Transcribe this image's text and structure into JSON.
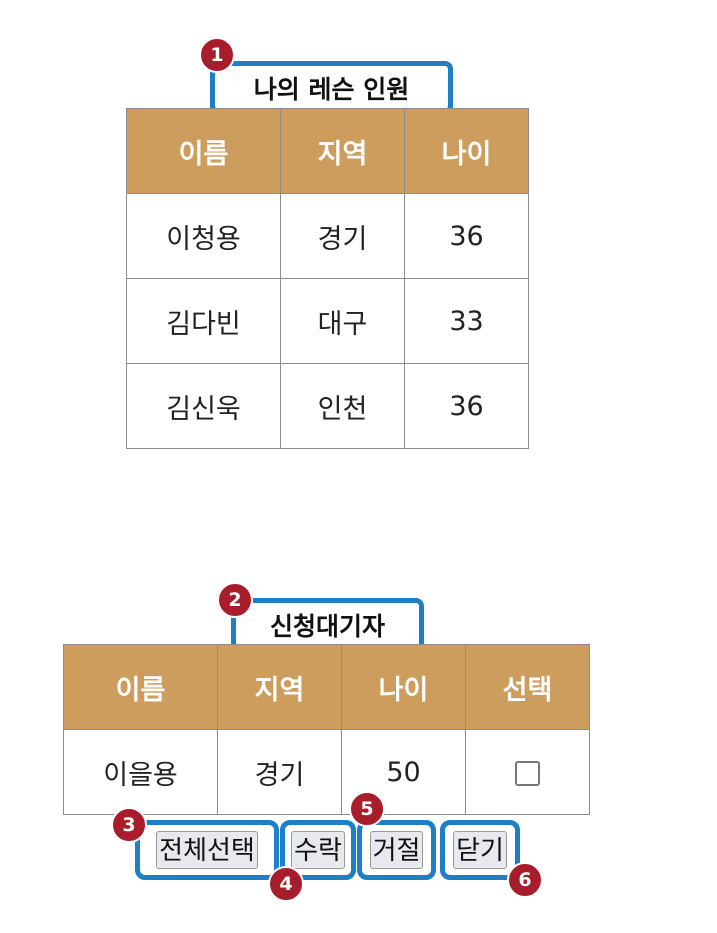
{
  "lesson_table": {
    "caption": "나의 레슨 인원",
    "headers": [
      "이름",
      "지역",
      "나이"
    ],
    "rows": [
      [
        "이청용",
        "경기",
        "36"
      ],
      [
        "김다빈",
        "대구",
        "33"
      ],
      [
        "김신욱",
        "인천",
        "36"
      ]
    ]
  },
  "waiting_table": {
    "caption": "신청대기자",
    "headers": [
      "이름",
      "지역",
      "나이",
      "선택"
    ],
    "rows": [
      [
        "이을용",
        "경기",
        "50"
      ]
    ]
  },
  "buttons": {
    "select_all": "전체선택",
    "accept": "수락",
    "reject": "거절",
    "close": "닫기"
  },
  "badges": [
    "1",
    "2",
    "3",
    "4",
    "5",
    "6"
  ],
  "colors": {
    "header_bg": "#cd9d5e",
    "highlight_border": "#1f7fc6",
    "badge_bg": "#a81d2c"
  }
}
